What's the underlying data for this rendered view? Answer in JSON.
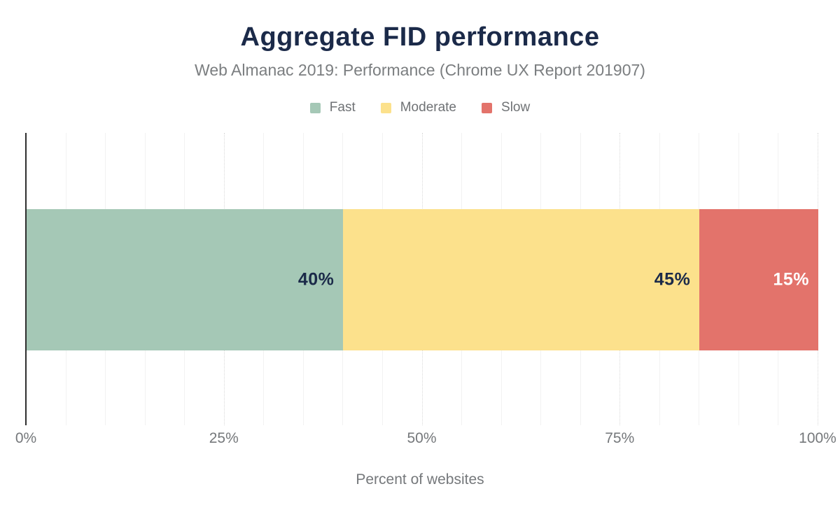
{
  "chart_data": {
    "type": "bar",
    "variant": "horizontal-stacked",
    "title": "Aggregate FID performance",
    "subtitle": "Web Almanac 2019: Performance (Chrome UX Report 201907)",
    "xlabel": "Percent of websites",
    "categories": [
      "websites"
    ],
    "series": [
      {
        "name": "Fast",
        "value": 40,
        "color": "#a5c8b6",
        "data_label": "40%",
        "data_label_color": "#1b2a49"
      },
      {
        "name": "Moderate",
        "value": 45,
        "color": "#fce18c",
        "data_label": "45%",
        "data_label_color": "#1b2a49"
      },
      {
        "name": "Slow",
        "value": 15,
        "color": "#e3736b",
        "data_label": "15%",
        "data_label_color": "#ffffff"
      }
    ],
    "xlim": [
      0,
      100
    ],
    "x_ticks": [
      {
        "value": 0,
        "label": "0%"
      },
      {
        "value": 25,
        "label": "25%"
      },
      {
        "value": 50,
        "label": "50%"
      },
      {
        "value": 75,
        "label": "75%"
      },
      {
        "value": 100,
        "label": "100%"
      }
    ],
    "minor_grid_step_percent": 5,
    "major_grid_step_percent": 25,
    "grid": "vertical-on",
    "legend_position": "top",
    "colors": {
      "title_text": "#1b2a49",
      "subtitle_text": "#7b7e80",
      "axis_text": "#75787b",
      "axis_line": "#2f2f2f",
      "minor_gridline": "#f2f2f2",
      "major_gridline": "#d9d9d9",
      "background": "#ffffff"
    }
  }
}
